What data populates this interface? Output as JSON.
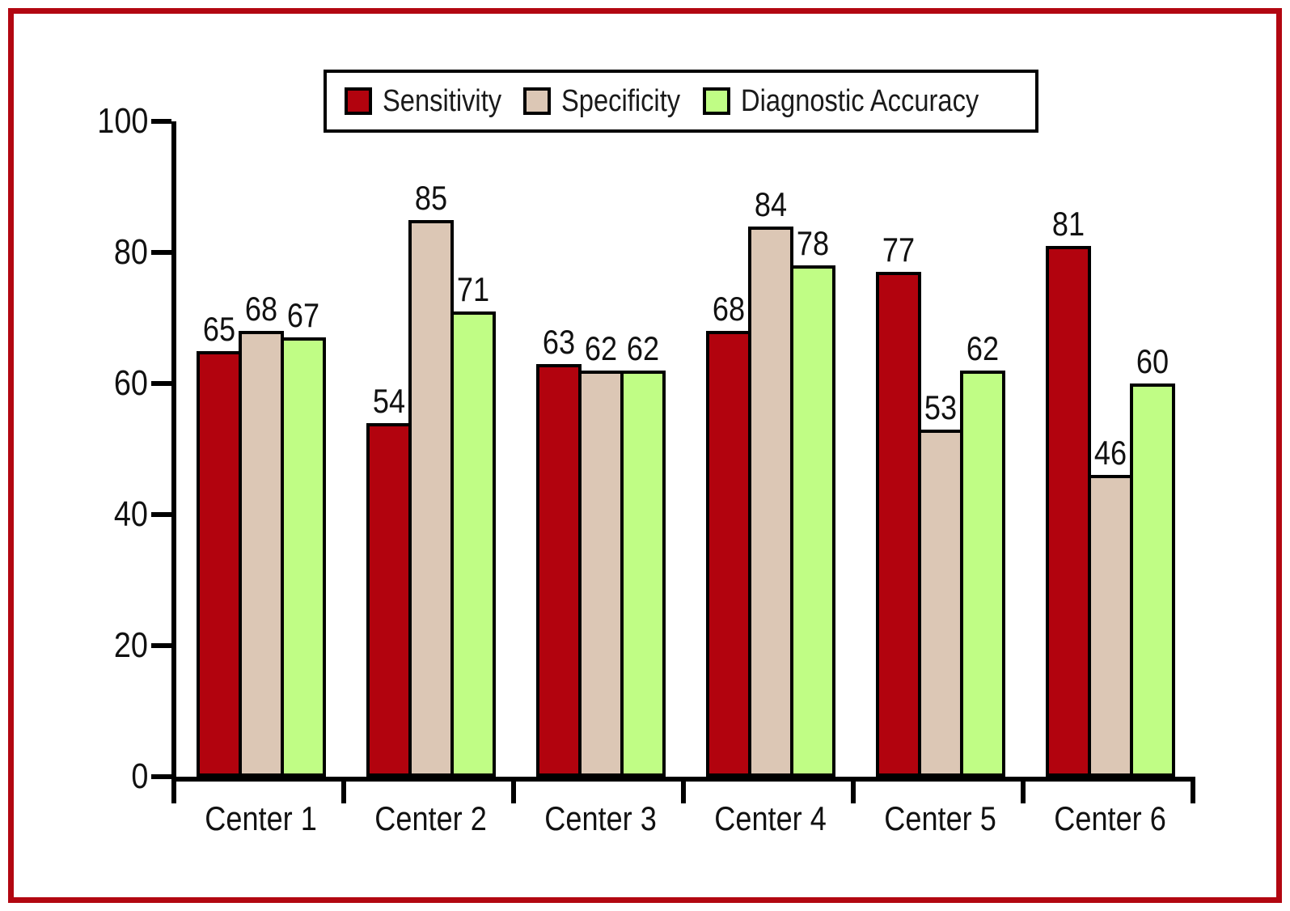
{
  "figure": {
    "border_color": "#b20711",
    "background": "#ffffff"
  },
  "legend": {
    "position": "top",
    "border_color": "#000000"
  },
  "chart_data": {
    "type": "bar",
    "title": "",
    "xlabel": "",
    "ylabel": "",
    "categories": [
      "Center 1",
      "Center 2",
      "Center 3",
      "Center 4",
      "Center 5",
      "Center 6"
    ],
    "series": [
      {
        "name": "Sensitivity",
        "color": "#b2030e",
        "values": [
          65,
          54,
          63,
          68,
          77,
          81
        ]
      },
      {
        "name": "Specificity",
        "color": "#dcc7b5",
        "values": [
          68,
          85,
          62,
          84,
          53,
          46
        ]
      },
      {
        "name": "Diagnostic Accuracy",
        "color": "#c0fd85",
        "values": [
          67,
          71,
          62,
          78,
          62,
          60
        ]
      }
    ],
    "ylim": [
      0,
      100
    ],
    "y_ticks": [
      0,
      20,
      40,
      60,
      80,
      100
    ],
    "grid": false,
    "bar_value_labels": true,
    "legend_position": "top",
    "axis_color": "#000000",
    "bar_outline_color": "#000000"
  }
}
